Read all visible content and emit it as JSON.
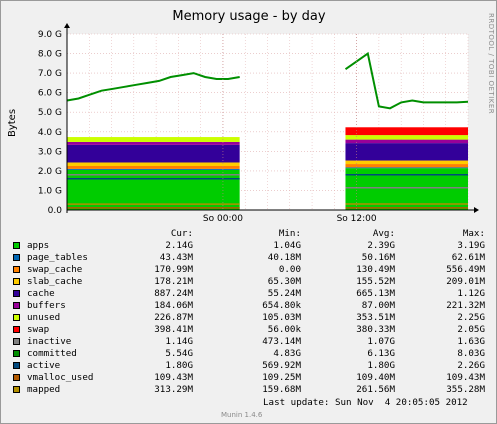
{
  "chart_data": {
    "type": "area",
    "title": "Memory usage - by day",
    "ylabel": "Bytes",
    "ylim": [
      0,
      9.0
    ],
    "y_unit": "G",
    "y_ticks": [
      "0.0",
      "1.0 G",
      "2.0 G",
      "3.0 G",
      "4.0 G",
      "5.0 G",
      "6.0 G",
      "7.0 G",
      "8.0 G",
      "9.0 G"
    ],
    "x_ticks": [
      {
        "label": "So 00:00",
        "hour": 14
      },
      {
        "label": "So 12:00",
        "hour": 26
      }
    ],
    "x_range_hours": [
      0,
      36
    ],
    "gap_hours": [
      15.5,
      25.0
    ],
    "grid": true,
    "stack_order": [
      "apps",
      "page_tables",
      "swap_cache",
      "slab_cache",
      "cache",
      "buffers",
      "unused",
      "swap"
    ],
    "line_series": [
      "inactive",
      "committed",
      "active",
      "vmalloc_used",
      "mapped"
    ],
    "segment_hours": [
      [
        0,
        15.5
      ],
      [
        25.0,
        36
      ]
    ],
    "segments": [
      {
        "apps": 2.05,
        "page_tables": 0.05,
        "swap_cache": 0.15,
        "slab_cache": 0.18,
        "cache": 0.9,
        "buffers": 0.15,
        "unused": 0.25,
        "swap": 0.0,
        "committed": [
          5.6,
          5.7,
          5.9,
          6.1,
          6.2,
          6.3,
          6.4,
          6.5,
          6.6,
          6.8,
          6.9,
          7.0,
          6.8,
          6.7,
          6.7,
          6.8
        ],
        "inactive": 1.8,
        "active": 1.6,
        "vmalloc_used": 0.11,
        "mapped": 0.3
      },
      {
        "apps": 2.14,
        "page_tables": 0.04,
        "swap_cache": 0.17,
        "slab_cache": 0.18,
        "cache": 0.89,
        "buffers": 0.18,
        "unused": 0.23,
        "swap": 0.4,
        "committed": [
          7.2,
          7.6,
          8.0,
          5.3,
          5.2,
          5.5,
          5.6,
          5.5,
          5.5,
          5.5,
          5.5,
          5.54
        ],
        "inactive": 1.14,
        "active": 1.8,
        "vmalloc_used": 0.11,
        "mapped": 0.31
      }
    ]
  },
  "legend": {
    "headers": {
      "cur": "Cur:",
      "min": "Min:",
      "avg": "Avg:",
      "max": "Max:"
    },
    "rows": [
      {
        "name": "apps",
        "color": "#00cc00",
        "cur": "2.14G",
        "min": "1.04G",
        "avg": "2.39G",
        "max": "3.19G"
      },
      {
        "name": "page_tables",
        "color": "#0066b3",
        "cur": "43.43M",
        "min": "40.18M",
        "avg": "50.16M",
        "max": "62.61M"
      },
      {
        "name": "swap_cache",
        "color": "#ff8000",
        "cur": "170.99M",
        "min": "0.00",
        "avg": "130.49M",
        "max": "556.49M"
      },
      {
        "name": "slab_cache",
        "color": "#ffcc00",
        "cur": "178.21M",
        "min": "65.30M",
        "avg": "155.52M",
        "max": "209.01M"
      },
      {
        "name": "cache",
        "color": "#330099",
        "cur": "887.24M",
        "min": "55.24M",
        "avg": "665.13M",
        "max": "1.12G"
      },
      {
        "name": "buffers",
        "color": "#990099",
        "cur": "184.06M",
        "min": "654.80k",
        "avg": "87.00M",
        "max": "221.32M"
      },
      {
        "name": "unused",
        "color": "#ccff00",
        "cur": "226.87M",
        "min": "105.03M",
        "avg": "353.51M",
        "max": "2.25G"
      },
      {
        "name": "swap",
        "color": "#ff0000",
        "cur": "398.41M",
        "min": "56.00k",
        "avg": "380.33M",
        "max": "2.05G"
      },
      {
        "name": "inactive",
        "color": "#808080",
        "cur": "1.14G",
        "min": "473.14M",
        "avg": "1.07G",
        "max": "1.63G"
      },
      {
        "name": "committed",
        "color": "#008f00",
        "cur": "5.54G",
        "min": "4.83G",
        "avg": "6.13G",
        "max": "8.03G"
      },
      {
        "name": "active",
        "color": "#00487d",
        "cur": "1.80G",
        "min": "569.92M",
        "avg": "1.80G",
        "max": "2.26G"
      },
      {
        "name": "vmalloc_used",
        "color": "#b35a00",
        "cur": "109.43M",
        "min": "109.25M",
        "avg": "109.40M",
        "max": "109.43M"
      },
      {
        "name": "mapped",
        "color": "#b38f00",
        "cur": "313.29M",
        "min": "159.68M",
        "avg": "261.56M",
        "max": "355.28M"
      }
    ]
  },
  "last_update_label": "Last update:",
  "last_update_value": "Sun Nov  4 20:05:05 2012",
  "watermark": "RRDTOOL / TOBI OETIKER",
  "version": "Munin 1.4.6"
}
